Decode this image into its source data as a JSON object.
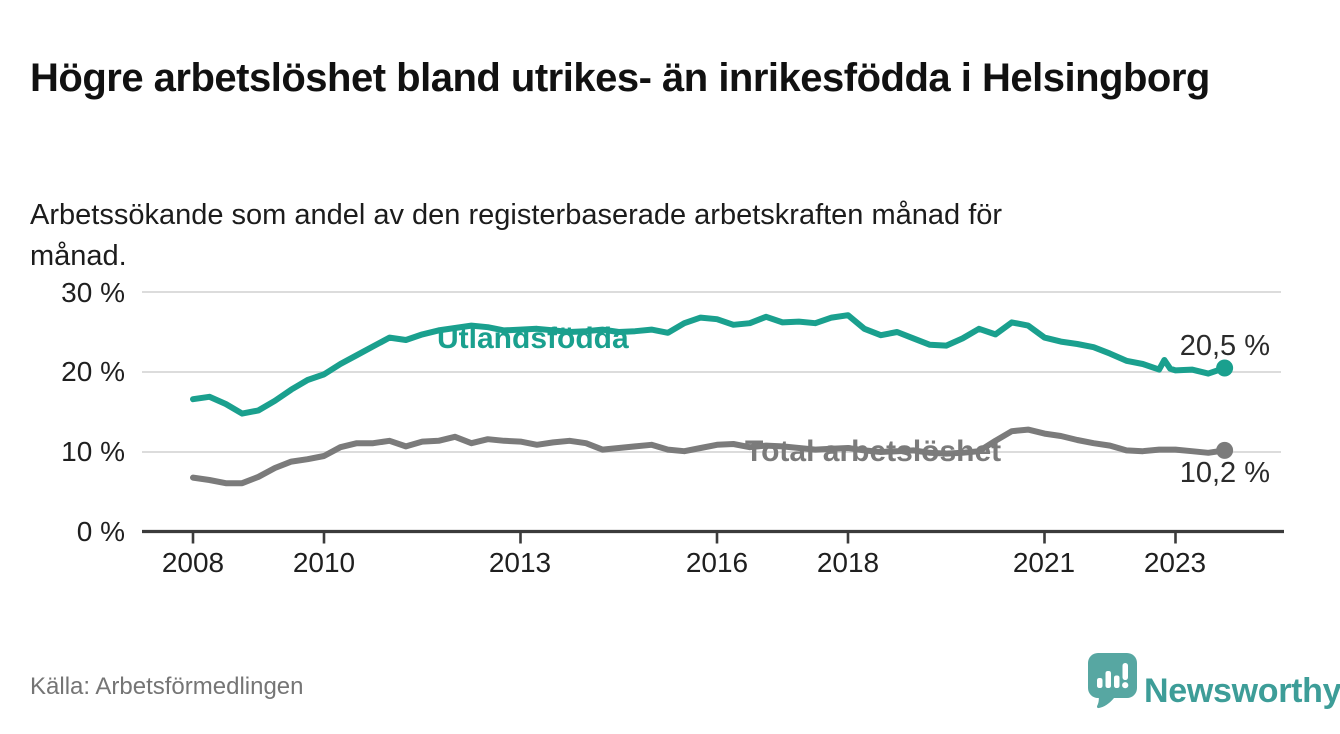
{
  "header": {
    "title": "Högre arbetslöshet bland utrikes- än inrikesfödda i Helsingborg",
    "subtitle": "Arbetssökande som andel av den registerbaserade arbetskraften månad för månad."
  },
  "source": {
    "label": "Källa: Arbetsförmedlingen"
  },
  "branding": {
    "name": "Newsworthy",
    "icon": "newsworthy-speech-bubble-bar-chart-icon",
    "text_color": "#3d9d98",
    "icon_color": "#57a7a2"
  },
  "chart_data": {
    "type": "line",
    "title": "Högre arbetslöshet bland utrikes- än inrikesfödda i Helsingborg",
    "subtitle": "Arbetssökande som andel av den registerbaserade arbetskraften månad för månad.",
    "unit": "%",
    "xlim": [
      2007.2,
      2024.6
    ],
    "ylim": [
      0,
      31.5
    ],
    "grid": true,
    "x_tick_years": [
      2008,
      2010,
      2013,
      2016,
      2018,
      2021,
      2023
    ],
    "x_tick_labels": [
      "2008",
      "2010",
      "2013",
      "2016",
      "2018",
      "2021",
      "2023"
    ],
    "y_tick_values": [
      0,
      10,
      20,
      30
    ],
    "y_tick_labels": [
      "0 %",
      "10 %",
      "20 %",
      "30 %"
    ],
    "style": {
      "grid_color": "#dcdcdc",
      "axis_color": "#3b3b3b",
      "line_width": 6
    },
    "series": [
      {
        "name": "Utlandsfödda",
        "color": "#1aa08e",
        "end_label": "20,5 %",
        "end_value": 20.5,
        "x": [
          2008.0,
          2008.25,
          2008.5,
          2008.75,
          2009.0,
          2009.25,
          2009.5,
          2009.75,
          2010.0,
          2010.25,
          2010.5,
          2010.75,
          2011.0,
          2011.25,
          2011.5,
          2011.75,
          2012.0,
          2012.25,
          2012.5,
          2012.75,
          2013.0,
          2013.25,
          2013.5,
          2013.75,
          2014.0,
          2014.25,
          2014.5,
          2014.75,
          2015.0,
          2015.25,
          2015.5,
          2015.75,
          2016.0,
          2016.25,
          2016.5,
          2016.75,
          2017.0,
          2017.25,
          2017.5,
          2017.75,
          2018.0,
          2018.25,
          2018.5,
          2018.75,
          2019.0,
          2019.25,
          2019.5,
          2019.75,
          2020.0,
          2020.25,
          2020.5,
          2020.75,
          2021.0,
          2021.25,
          2021.5,
          2021.75,
          2022.0,
          2022.25,
          2022.5,
          2022.75,
          2022.83,
          2022.92,
          2023.0,
          2023.25,
          2023.5,
          2023.75
        ],
        "values": [
          16.6,
          16.9,
          16.0,
          14.8,
          15.2,
          16.4,
          17.8,
          19.0,
          19.7,
          21.0,
          22.1,
          23.2,
          24.3,
          24.0,
          24.7,
          25.2,
          25.5,
          25.8,
          25.6,
          25.2,
          25.3,
          25.4,
          25.2,
          25.0,
          25.1,
          25.3,
          25.0,
          25.1,
          25.3,
          24.9,
          26.1,
          26.8,
          26.6,
          25.9,
          26.1,
          26.9,
          26.2,
          26.3,
          26.1,
          26.8,
          27.1,
          25.4,
          24.6,
          25.0,
          24.2,
          23.4,
          23.3,
          24.2,
          25.4,
          24.7,
          26.2,
          25.8,
          24.3,
          23.8,
          23.5,
          23.1,
          22.3,
          21.4,
          21.0,
          20.3,
          21.5,
          20.4,
          20.2,
          20.3,
          19.8,
          20.5
        ]
      },
      {
        "name": "Total arbetslöshet",
        "color": "#7b7b7b",
        "end_label": "10,2 %",
        "end_value": 10.2,
        "x": [
          2008.0,
          2008.25,
          2008.5,
          2008.75,
          2009.0,
          2009.25,
          2009.5,
          2009.75,
          2010.0,
          2010.25,
          2010.5,
          2010.75,
          2011.0,
          2011.25,
          2011.5,
          2011.75,
          2012.0,
          2012.25,
          2012.5,
          2012.75,
          2013.0,
          2013.25,
          2013.5,
          2013.75,
          2014.0,
          2014.25,
          2014.5,
          2014.75,
          2015.0,
          2015.25,
          2015.5,
          2015.75,
          2016.0,
          2016.25,
          2016.5,
          2016.75,
          2017.0,
          2017.25,
          2017.5,
          2017.75,
          2018.0,
          2018.25,
          2018.5,
          2018.75,
          2019.0,
          2019.25,
          2019.5,
          2019.75,
          2020.0,
          2020.25,
          2020.5,
          2020.75,
          2021.0,
          2021.25,
          2021.5,
          2021.75,
          2022.0,
          2022.25,
          2022.5,
          2022.75,
          2023.0,
          2023.25,
          2023.5,
          2023.75
        ],
        "values": [
          6.8,
          6.5,
          6.1,
          6.1,
          6.9,
          8.0,
          8.8,
          9.1,
          9.5,
          10.6,
          11.1,
          11.1,
          11.4,
          10.7,
          11.3,
          11.4,
          11.9,
          11.1,
          11.6,
          11.4,
          11.3,
          10.9,
          11.2,
          11.4,
          11.1,
          10.3,
          10.5,
          10.7,
          10.9,
          10.3,
          10.1,
          10.5,
          10.9,
          11.0,
          10.6,
          10.8,
          10.7,
          10.5,
          10.3,
          10.4,
          10.5,
          10.2,
          10.0,
          10.1,
          10.2,
          9.9,
          9.8,
          9.9,
          10.1,
          11.4,
          12.6,
          12.8,
          12.3,
          12.0,
          11.5,
          11.1,
          10.8,
          10.2,
          10.1,
          10.3,
          10.3,
          10.1,
          9.9,
          10.2
        ]
      }
    ]
  }
}
